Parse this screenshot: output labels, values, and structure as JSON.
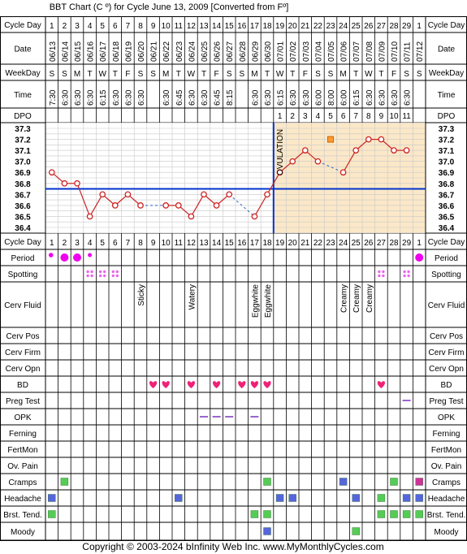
{
  "title": "BBT Chart (C º) for Cycle June 13, 2009  [Converted from Fº]",
  "footer": "Copyright © 2003-2024 bInfinity Web Inc.    www.MyMonthlyCycles.com",
  "colors": {
    "background_post": "#fbe8c8",
    "background_pre": "#ffffff",
    "grid": "#c8c8c8",
    "label_bg": "#ffffff",
    "temp_line": "#cc2222",
    "coverline": "#0033cc",
    "ovulation_line": "#0033cc",
    "dashed": "#3366cc",
    "period": "#ee00ee",
    "spotting": "#ee66ee",
    "heart": "#ee2277",
    "cervical_text": "#000000",
    "opk_neg": "#9966cc",
    "green_sq": "#55cc55",
    "blue_sq": "#5566dd",
    "magenta_sq": "#cc3399",
    "open_square": "#ff9933"
  },
  "row_labels": {
    "cycle_day": "Cycle Day",
    "date": "Date",
    "weekday": "WeekDay",
    "time": "Time",
    "dpo": "DPO",
    "period": "Period",
    "spotting": "Spotting",
    "cerv_fluid": "Cerv Fluid",
    "cerv_pos": "Cerv Pos",
    "cerv_firm": "Cerv Firm",
    "cerv_opn": "Cerv Opn",
    "bd": "BD",
    "preg_test": "Preg Test",
    "opk": "OPK",
    "ferning": "Ferning",
    "fertmon": "FertMon",
    "ov_pain": "Ov. Pain",
    "cramps": "Cramps",
    "headache": "Headache",
    "brst_tend": "Brst. Tend.",
    "moody": "Moody"
  },
  "ovulation_label": "OVULATION",
  "chart_data": {
    "type": "line",
    "cycle_days": [
      "1",
      "2",
      "3",
      "4",
      "5",
      "6",
      "7",
      "8",
      "9",
      "10",
      "11",
      "12",
      "13",
      "14",
      "15",
      "16",
      "17",
      "18",
      "19",
      "20",
      "21",
      "22",
      "23",
      "24",
      "25",
      "26",
      "27",
      "28",
      "29",
      "1"
    ],
    "dates": [
      "06/13",
      "06/14",
      "06/15",
      "06/16",
      "06/17",
      "06/18",
      "06/19",
      "06/20",
      "06/21",
      "06/22",
      "06/23",
      "06/24",
      "06/25",
      "06/26",
      "06/27",
      "06/28",
      "06/29",
      "06/30",
      "07/01",
      "07/02",
      "07/03",
      "07/04",
      "07/05",
      "07/06",
      "07/07",
      "07/08",
      "07/09",
      "07/10",
      "07/11",
      "07/12"
    ],
    "weekdays": [
      "S",
      "S",
      "M",
      "T",
      "W",
      "T",
      "F",
      "S",
      "S",
      "M",
      "T",
      "W",
      "T",
      "F",
      "S",
      "S",
      "M",
      "T",
      "W",
      "T",
      "F",
      "S",
      "S",
      "M",
      "T",
      "W",
      "T",
      "F",
      "S",
      "S"
    ],
    "times": [
      "7:30",
      "6:30",
      "6:30",
      "6:30",
      "6:15",
      "6:30",
      "6:30",
      "6:30",
      "",
      "6:30",
      "6:45",
      "6:30",
      "6:30",
      "6:45",
      "8:15",
      "",
      "6:30",
      "6:30",
      "6:15",
      "6:30",
      "6:30",
      "6:00",
      "8:00",
      "6:00",
      "6:15",
      "6:30",
      "6:30",
      "6:30",
      "6:30",
      ""
    ],
    "dpo": [
      "",
      "",
      "",
      "",
      "",
      "",
      "",
      "",
      "",
      "",
      "",
      "",
      "",
      "",
      "",
      "",
      "",
      "",
      "1",
      "2",
      "3",
      "4",
      "5",
      "6",
      "7",
      "8",
      "9",
      "10",
      "11",
      ""
    ],
    "temps": [
      36.9,
      36.8,
      36.8,
      36.5,
      36.7,
      36.6,
      36.7,
      36.6,
      null,
      36.6,
      36.6,
      36.5,
      36.7,
      36.6,
      36.7,
      null,
      36.5,
      36.7,
      36.9,
      37.0,
      37.1,
      37.0,
      null,
      36.9,
      37.1,
      37.2,
      37.2,
      37.1,
      37.1,
      null
    ],
    "open_markers": [
      {
        "day_index": 22,
        "temp": 37.2
      }
    ],
    "y_ticks": [
      "37.3",
      "37.2",
      "37.1",
      "37.0",
      "36.9",
      "36.8",
      "36.7",
      "36.6",
      "36.5",
      "36.4"
    ],
    "ylim": [
      36.4,
      37.3
    ],
    "coverline": 36.75,
    "ovulation_after_day_index": 17,
    "period": [
      "big-small",
      "big",
      "big",
      "small",
      "",
      "",
      "",
      "",
      "",
      "",
      "",
      "",
      "",
      "",
      "",
      "",
      "",
      "",
      "",
      "",
      "",
      "",
      "",
      "",
      "",
      "",
      "",
      "",
      "",
      "big"
    ],
    "spotting": [
      false,
      false,
      false,
      true,
      true,
      true,
      false,
      false,
      false,
      false,
      false,
      false,
      false,
      false,
      false,
      false,
      false,
      false,
      false,
      false,
      false,
      false,
      false,
      false,
      false,
      false,
      true,
      false,
      true,
      false
    ],
    "cerv_fluid": [
      "",
      "",
      "",
      "",
      "",
      "",
      "",
      "Sticky",
      "",
      "",
      "",
      "Watery",
      "",
      "",
      "",
      "",
      "Eggwhite",
      "Eggwhite",
      "",
      "",
      "",
      "",
      "",
      "Creamy",
      "Creamy",
      "Creamy",
      "",
      "",
      "",
      ""
    ],
    "bd": [
      false,
      false,
      false,
      false,
      false,
      false,
      false,
      false,
      true,
      true,
      false,
      true,
      false,
      true,
      false,
      true,
      true,
      true,
      false,
      false,
      false,
      false,
      false,
      false,
      false,
      false,
      true,
      false,
      false,
      false
    ],
    "preg_test": [
      "",
      "",
      "",
      "",
      "",
      "",
      "",
      "",
      "",
      "",
      "",
      "",
      "",
      "",
      "",
      "",
      "",
      "",
      "",
      "",
      "",
      "",
      "",
      "",
      "",
      "",
      "",
      "",
      "neg",
      ""
    ],
    "opk": [
      "",
      "",
      "",
      "",
      "",
      "",
      "",
      "",
      "",
      "",
      "",
      "",
      "neg",
      "neg",
      "neg",
      "",
      "neg",
      "",
      "",
      "",
      "",
      "",
      "",
      "",
      "",
      "",
      "",
      "",
      "",
      ""
    ],
    "cramps": [
      "",
      "green",
      "",
      "",
      "",
      "",
      "",
      "",
      "",
      "",
      "",
      "",
      "",
      "",
      "",
      "",
      "",
      "green",
      "",
      "",
      "",
      "",
      "",
      "blue",
      "",
      "",
      "",
      "green",
      "",
      "magenta"
    ],
    "headache": [
      "blue",
      "",
      "",
      "",
      "",
      "",
      "",
      "",
      "",
      "",
      "blue",
      "",
      "",
      "",
      "",
      "",
      "",
      "",
      "blue",
      "blue",
      "",
      "",
      "",
      "",
      "blue",
      "",
      "green",
      "",
      "blue",
      "blue"
    ],
    "brst_tend": [
      "green",
      "",
      "",
      "",
      "",
      "",
      "",
      "",
      "",
      "",
      "",
      "",
      "",
      "",
      "",
      "",
      "green",
      "green",
      "",
      "",
      "",
      "",
      "",
      "",
      "",
      "",
      "green",
      "green",
      "green",
      "green"
    ],
    "moody": [
      "",
      "",
      "",
      "",
      "",
      "",
      "",
      "",
      "",
      "",
      "",
      "",
      "",
      "",
      "",
      "",
      "",
      "blue",
      "",
      "",
      "",
      "",
      "",
      "",
      "green",
      "",
      "",
      "",
      "",
      ""
    ]
  }
}
